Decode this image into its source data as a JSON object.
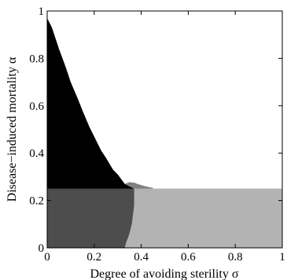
{
  "chart_data": {
    "type": "heatmap",
    "title": "",
    "xlabel": "Degree of avoiding sterility σ",
    "ylabel": "Disease−induced mortality α",
    "xlim": [
      0,
      1
    ],
    "ylim": [
      0,
      1
    ],
    "x_ticks": [
      "0",
      "0.2",
      "0.4",
      "0.6",
      "0.8",
      "1"
    ],
    "y_ticks": [
      "0",
      "0.2",
      "0.4",
      "0.6",
      "0.8",
      "1"
    ],
    "grid": false,
    "legend": "none",
    "colors": {
      "black_region": "#000000",
      "dark_gray_region": "#4d4d4d",
      "mid_gray_region": "#808080",
      "light_gray_region": "#b3b3b3",
      "background": "#ffffff"
    },
    "regions": {
      "horizontal_threshold_alpha": 0.25,
      "black_region_upper_boundary": {
        "sigma": [
          0.0,
          0.02,
          0.05,
          0.08,
          0.1,
          0.13,
          0.15,
          0.18,
          0.2,
          0.23,
          0.25,
          0.28,
          0.3,
          0.33
        ],
        "alpha": [
          0.97,
          0.93,
          0.84,
          0.76,
          0.7,
          0.63,
          0.58,
          0.51,
          0.47,
          0.41,
          0.38,
          0.33,
          0.31,
          0.27
        ]
      },
      "black_region_lower_extension": {
        "sigma": [
          0.33,
          0.345,
          0.36,
          0.37
        ],
        "alpha": [
          0.27,
          0.262,
          0.255,
          0.25
        ]
      },
      "dark_gray_right_boundary": {
        "alpha": [
          0.25,
          0.22,
          0.18,
          0.14,
          0.1,
          0.06,
          0.02,
          0.0
        ],
        "sigma": [
          0.37,
          0.37,
          0.37,
          0.365,
          0.36,
          0.35,
          0.335,
          0.33
        ]
      },
      "mid_gray_upper_boundary": {
        "sigma": [
          0.33,
          0.35,
          0.37,
          0.39,
          0.41,
          0.43,
          0.45
        ],
        "alpha": [
          0.27,
          0.277,
          0.275,
          0.268,
          0.262,
          0.257,
          0.253
        ]
      }
    }
  }
}
